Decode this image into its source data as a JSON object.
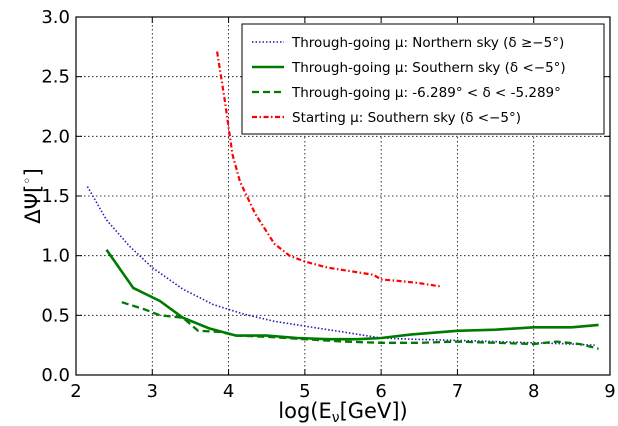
{
  "chart_data": {
    "type": "line",
    "title": "",
    "xlabel": "log(E_ν[GeV])",
    "ylabel": "ΔΨ[°]",
    "xlim": [
      2,
      9
    ],
    "ylim": [
      0.0,
      3.0
    ],
    "x_ticks": [
      "2",
      "3",
      "4",
      "5",
      "6",
      "7",
      "8",
      "9"
    ],
    "y_ticks": [
      "0.0",
      "0.5",
      "1.0",
      "1.5",
      "2.0",
      "2.5",
      "3.0"
    ],
    "grid": true,
    "legend_position": "top-right",
    "series": [
      {
        "name": "Through-going μ: Northern sky (δ ≥−5°)",
        "color": "#1f1fb4",
        "style": "dotted",
        "points": [
          [
            2.15,
            1.58
          ],
          [
            2.4,
            1.3
          ],
          [
            2.7,
            1.08
          ],
          [
            3.0,
            0.9
          ],
          [
            3.4,
            0.72
          ],
          [
            3.8,
            0.59
          ],
          [
            4.2,
            0.51
          ],
          [
            4.6,
            0.45
          ],
          [
            5.0,
            0.41
          ],
          [
            5.4,
            0.37
          ],
          [
            5.8,
            0.33
          ],
          [
            6.0,
            0.31
          ],
          [
            6.4,
            0.3
          ],
          [
            7.0,
            0.29
          ],
          [
            7.5,
            0.28
          ],
          [
            8.0,
            0.27
          ],
          [
            8.5,
            0.26
          ],
          [
            8.8,
            0.25
          ]
        ]
      },
      {
        "name": "Through-going μ: Southern sky (δ <−5°)",
        "color": "#007a00",
        "style": "solid",
        "points": [
          [
            2.4,
            1.05
          ],
          [
            2.75,
            0.73
          ],
          [
            3.1,
            0.62
          ],
          [
            3.4,
            0.48
          ],
          [
            3.75,
            0.39
          ],
          [
            4.1,
            0.33
          ],
          [
            4.5,
            0.33
          ],
          [
            4.9,
            0.31
          ],
          [
            5.3,
            0.3
          ],
          [
            5.7,
            0.3
          ],
          [
            6.0,
            0.31
          ],
          [
            6.4,
            0.34
          ],
          [
            7.0,
            0.37
          ],
          [
            7.5,
            0.38
          ],
          [
            8.0,
            0.4
          ],
          [
            8.5,
            0.4
          ],
          [
            8.85,
            0.42
          ]
        ]
      },
      {
        "name": "Through-going μ: -6.289° < δ < -5.289°",
        "color": "#007a00",
        "style": "dashed",
        "points": [
          [
            2.6,
            0.61
          ],
          [
            2.9,
            0.55
          ],
          [
            3.1,
            0.5
          ],
          [
            3.4,
            0.48
          ],
          [
            3.6,
            0.37
          ],
          [
            3.9,
            0.36
          ],
          [
            4.1,
            0.33
          ],
          [
            4.5,
            0.32
          ],
          [
            5.0,
            0.3
          ],
          [
            5.5,
            0.28
          ],
          [
            6.0,
            0.27
          ],
          [
            6.5,
            0.27
          ],
          [
            7.0,
            0.28
          ],
          [
            7.5,
            0.27
          ],
          [
            8.0,
            0.26
          ],
          [
            8.3,
            0.28
          ],
          [
            8.6,
            0.26
          ],
          [
            8.85,
            0.22
          ]
        ]
      },
      {
        "name": "Starting μ: Southern sky (δ <−5°)",
        "color": "#ff0000",
        "style": "dashdot",
        "points": [
          [
            3.85,
            2.71
          ],
          [
            3.95,
            2.3
          ],
          [
            4.05,
            1.85
          ],
          [
            4.15,
            1.62
          ],
          [
            4.35,
            1.35
          ],
          [
            4.6,
            1.1
          ],
          [
            4.8,
            1.0
          ],
          [
            5.0,
            0.95
          ],
          [
            5.3,
            0.9
          ],
          [
            5.6,
            0.87
          ],
          [
            5.9,
            0.84
          ],
          [
            6.0,
            0.8
          ],
          [
            6.2,
            0.79
          ],
          [
            6.5,
            0.77
          ],
          [
            6.8,
            0.74
          ]
        ]
      }
    ]
  }
}
